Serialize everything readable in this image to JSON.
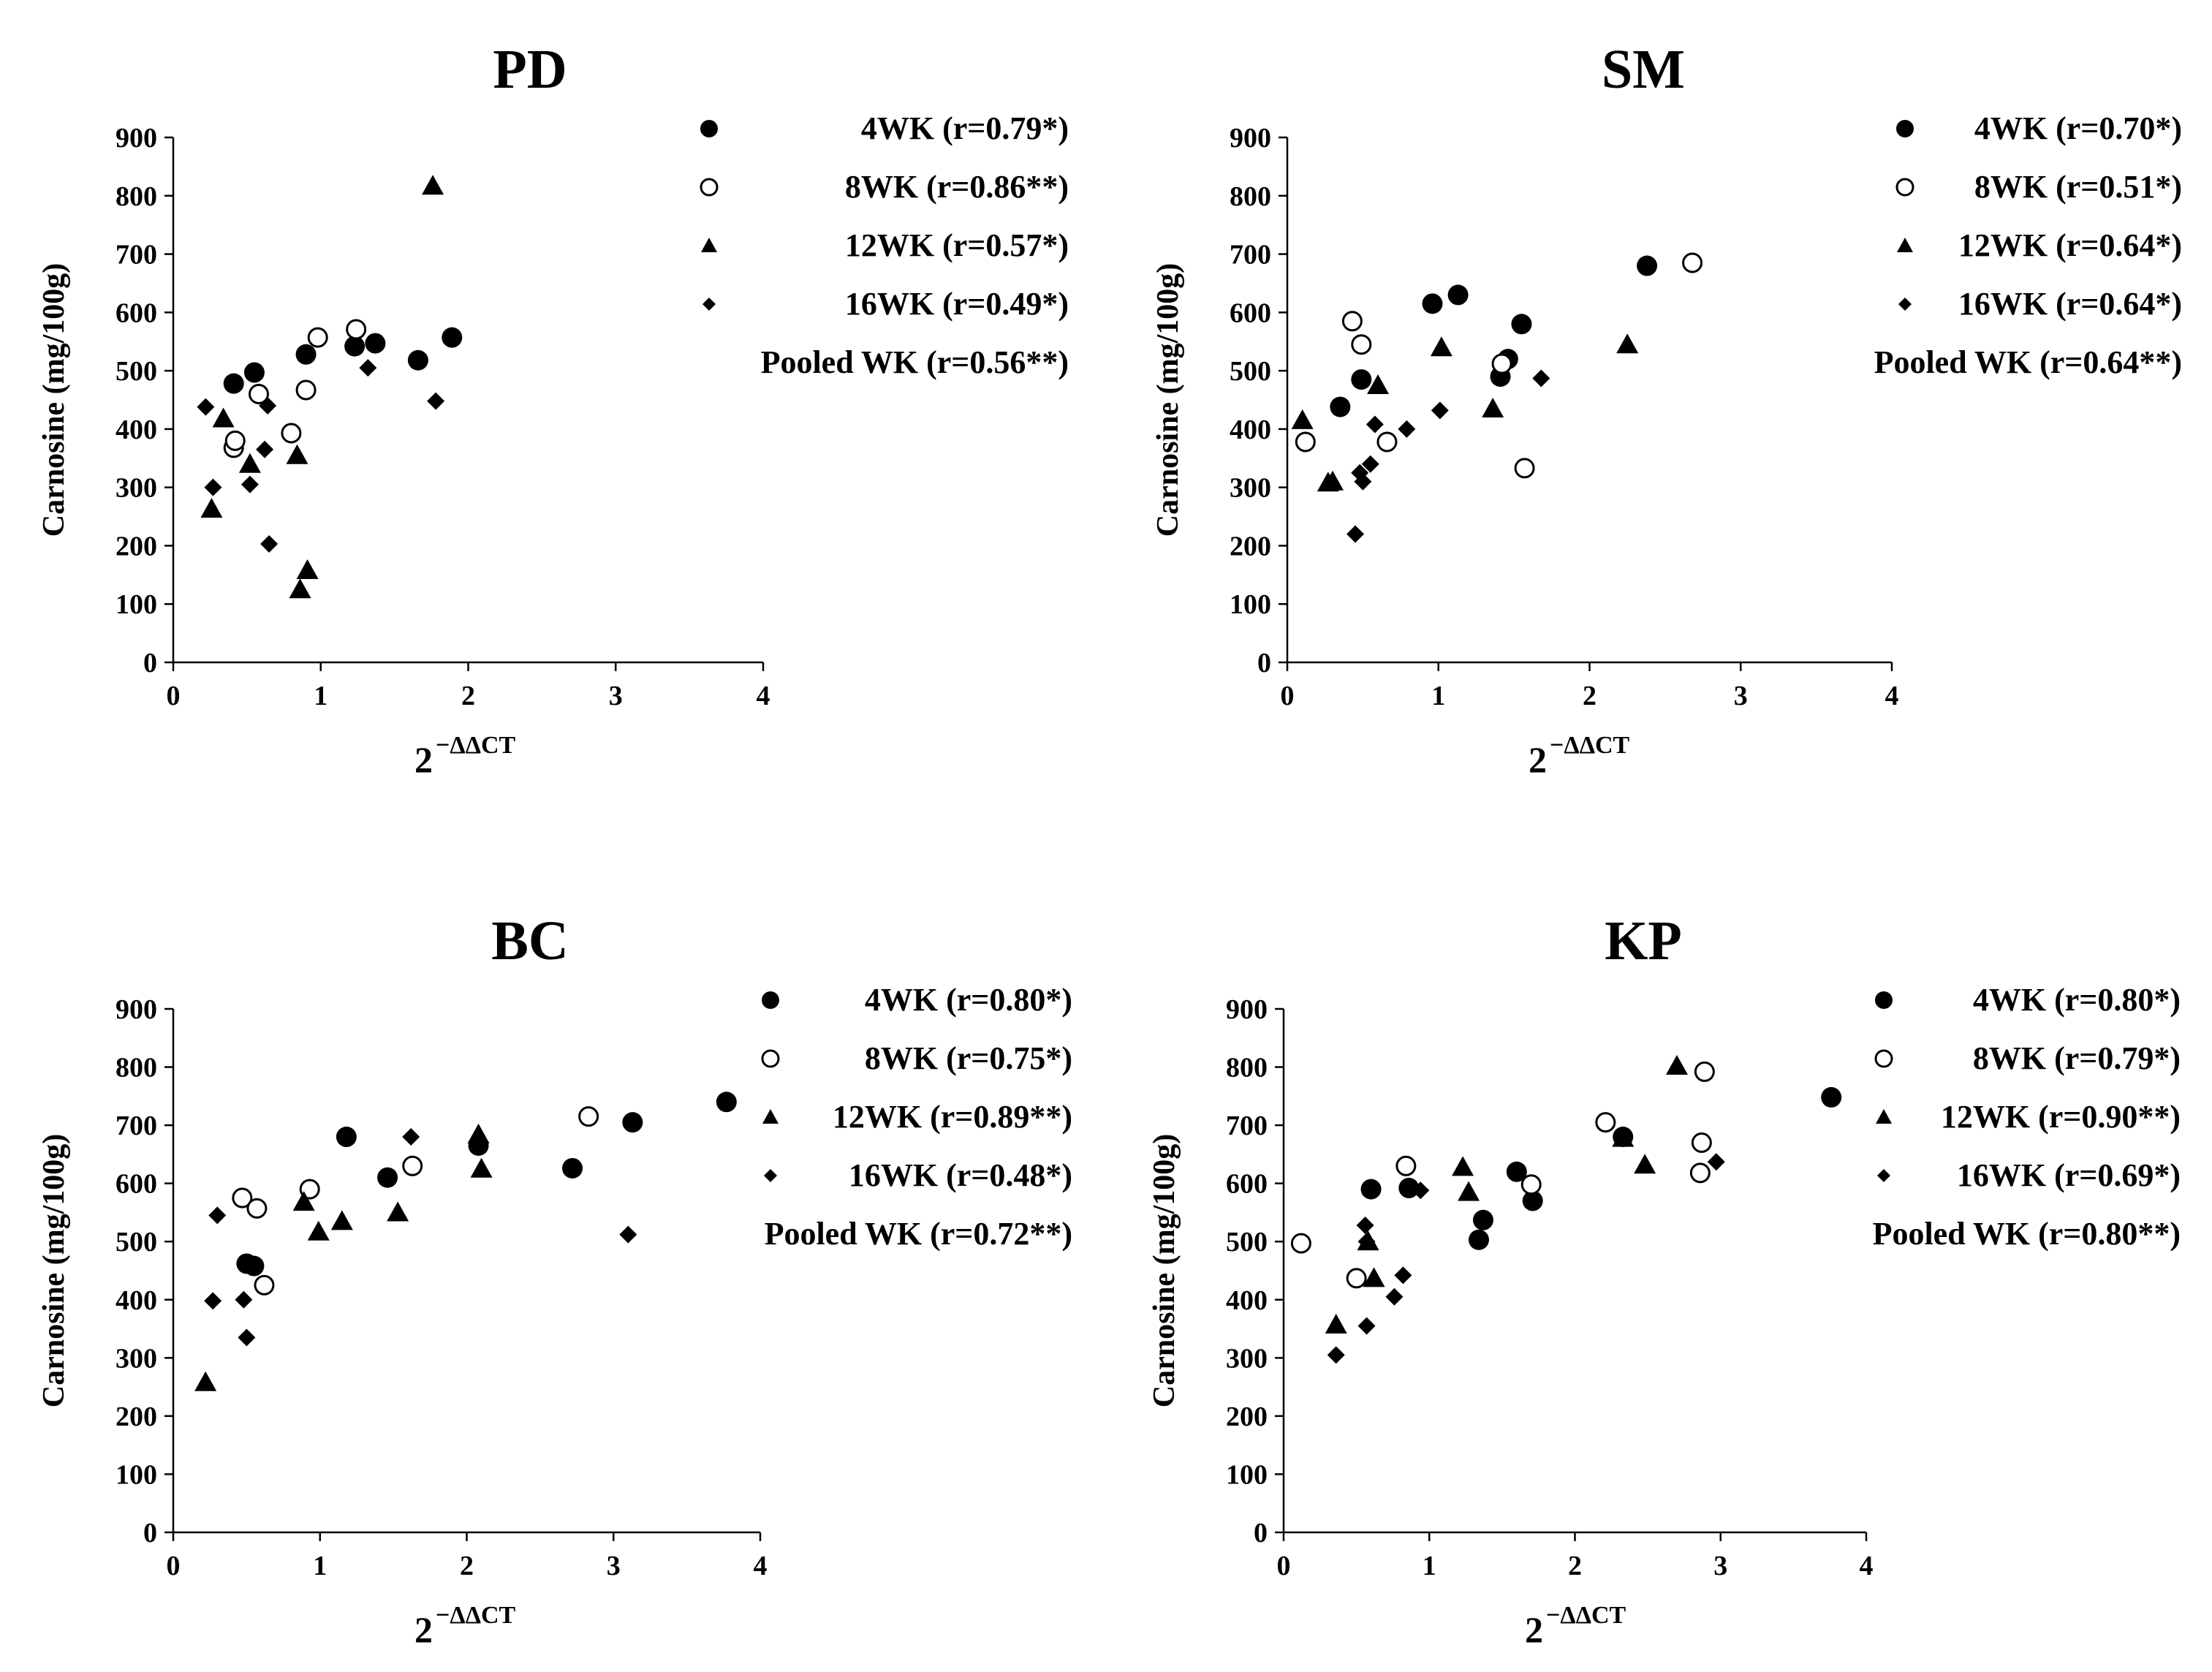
{
  "chart_data": [
    {
      "type": "scatter",
      "title": "PD",
      "xlabel": "2",
      "xlabel_sup": "−ΔΔCT",
      "ylabel": "Carnosine (mg/100g)",
      "xlim": [
        0,
        4
      ],
      "ylim": [
        0,
        900
      ],
      "xticks": [
        "0",
        "1",
        "2",
        "3",
        "4"
      ],
      "yticks": [
        "0",
        "100",
        "200",
        "300",
        "400",
        "500",
        "600",
        "700",
        "800",
        "900"
      ],
      "legend": [
        "4WK (r=0.79*)",
        "8WK (r=0.86**)",
        "12WK (r=0.57*)",
        "16WK (r=0.49*)",
        "Pooled WK (r=0.56**)"
      ],
      "series": [
        {
          "name": "4WK",
          "marker": "filled-circle",
          "points": [
            [
              0.41,
              478
            ],
            [
              0.55,
              497
            ],
            [
              0.9,
              528
            ],
            [
              1.23,
              542
            ],
            [
              1.37,
              547
            ],
            [
              1.66,
              518
            ],
            [
              1.89,
              557
            ]
          ]
        },
        {
          "name": "8WK",
          "marker": "open-circle",
          "points": [
            [
              0.41,
              368
            ],
            [
              0.42,
              380
            ],
            [
              0.58,
              460
            ],
            [
              0.8,
              393
            ],
            [
              0.9,
              467
            ],
            [
              0.98,
              557
            ],
            [
              1.24,
              571
            ]
          ]
        },
        {
          "name": "12WK",
          "marker": "filled-triangle",
          "points": [
            [
              0.26,
              263
            ],
            [
              0.34,
              418
            ],
            [
              0.52,
              340
            ],
            [
              0.84,
              355
            ],
            [
              0.86,
              125
            ],
            [
              0.91,
              158
            ],
            [
              1.76,
              817
            ]
          ]
        },
        {
          "name": "16WK",
          "marker": "filled-diamond",
          "points": [
            [
              0.22,
              438
            ],
            [
              0.27,
              300
            ],
            [
              0.52,
              305
            ],
            [
              0.62,
              365
            ],
            [
              0.64,
              440
            ],
            [
              0.65,
              203
            ],
            [
              1.32,
              505
            ],
            [
              1.78,
              448
            ]
          ]
        }
      ]
    },
    {
      "type": "scatter",
      "title": "SM",
      "xlabel": "2",
      "xlabel_sup": "−ΔΔCT",
      "ylabel": "Carnosine (mg/100g)",
      "xlim": [
        0,
        4
      ],
      "ylim": [
        0,
        900
      ],
      "xticks": [
        "0",
        "1",
        "2",
        "3",
        "4"
      ],
      "yticks": [
        "0",
        "100",
        "200",
        "300",
        "400",
        "500",
        "600",
        "700",
        "800",
        "900"
      ],
      "legend": [
        "4WK (r=0.70*)",
        "8WK (r=0.51*)",
        "12WK (r=0.64*)",
        "16WK (r=0.64*)",
        "Pooled WK (r=0.64**)"
      ],
      "series": [
        {
          "name": "4WK",
          "marker": "filled-circle",
          "points": [
            [
              0.35,
              438
            ],
            [
              0.49,
              485
            ],
            [
              0.96,
              615
            ],
            [
              1.13,
              630
            ],
            [
              1.41,
              490
            ],
            [
              1.46,
              520
            ],
            [
              1.55,
              580
            ],
            [
              2.38,
              680
            ]
          ]
        },
        {
          "name": "8WK",
          "marker": "open-circle",
          "points": [
            [
              0.12,
              378
            ],
            [
              0.43,
              585
            ],
            [
              0.49,
              545
            ],
            [
              0.66,
              378
            ],
            [
              1.42,
              512
            ],
            [
              1.57,
              333
            ],
            [
              2.68,
              685
            ]
          ]
        },
        {
          "name": "12WK",
          "marker": "filled-triangle",
          "points": [
            [
              0.1,
              415
            ],
            [
              0.27,
              308
            ],
            [
              0.3,
              310
            ],
            [
              0.6,
              475
            ],
            [
              1.02,
              540
            ],
            [
              1.36,
              435
            ],
            [
              2.25,
              545
            ]
          ]
        },
        {
          "name": "16WK",
          "marker": "filled-diamond",
          "points": [
            [
              0.45,
              220
            ],
            [
              0.48,
              325
            ],
            [
              0.5,
              310
            ],
            [
              0.55,
              340
            ],
            [
              0.58,
              408
            ],
            [
              0.79,
              400
            ],
            [
              1.01,
              432
            ],
            [
              1.68,
              487
            ]
          ]
        }
      ]
    },
    {
      "type": "scatter",
      "title": "BC",
      "xlabel": "2",
      "xlabel_sup": "−ΔΔCT",
      "ylabel": "Carnosine (mg/100g)",
      "xlim": [
        0,
        4
      ],
      "ylim": [
        0,
        900
      ],
      "xticks": [
        "0",
        "1",
        "2",
        "3",
        "4"
      ],
      "yticks": [
        "0",
        "100",
        "200",
        "300",
        "400",
        "500",
        "600",
        "700",
        "800",
        "900"
      ],
      "legend": [
        "4WK (r=0.80*)",
        "8WK (r=0.75*)",
        "12WK (r=0.89**)",
        "16WK (r=0.48*)",
        "Pooled WK (r=0.72**)"
      ],
      "series": [
        {
          "name": "4WK",
          "marker": "filled-circle",
          "points": [
            [
              0.5,
              462
            ],
            [
              0.55,
              458
            ],
            [
              1.18,
              680
            ],
            [
              1.46,
              610
            ],
            [
              2.08,
              665
            ],
            [
              2.72,
              626
            ],
            [
              3.13,
              705
            ],
            [
              3.77,
              740
            ]
          ]
        },
        {
          "name": "8WK",
          "marker": "open-circle",
          "points": [
            [
              0.47,
              575
            ],
            [
              0.57,
              557
            ],
            [
              0.62,
              425
            ],
            [
              0.93,
              590
            ],
            [
              1.63,
              630
            ],
            [
              2.83,
              715
            ]
          ]
        },
        {
          "name": "12WK",
          "marker": "filled-triangle",
          "points": [
            [
              0.22,
              258
            ],
            [
              0.89,
              568
            ],
            [
              0.99,
              517
            ],
            [
              1.15,
              535
            ],
            [
              1.53,
              550
            ],
            [
              2.08,
              684
            ],
            [
              2.1,
              625
            ]
          ]
        },
        {
          "name": "16WK",
          "marker": "filled-diamond",
          "points": [
            [
              0.27,
              398
            ],
            [
              0.3,
              545
            ],
            [
              0.48,
              400
            ],
            [
              0.5,
              335
            ],
            [
              1.62,
              680
            ],
            [
              3.1,
              512
            ]
          ]
        }
      ]
    },
    {
      "type": "scatter",
      "title": "KP",
      "xlabel": "2",
      "xlabel_sup": "−ΔΔCT",
      "ylabel": "Carnosine (mg/100g)",
      "xlim": [
        0,
        4
      ],
      "ylim": [
        0,
        900
      ],
      "xticks": [
        "0",
        "1",
        "2",
        "3",
        "4"
      ],
      "yticks": [
        "0",
        "100",
        "200",
        "300",
        "400",
        "500",
        "600",
        "700",
        "800",
        "900"
      ],
      "legend": [
        "4WK (r=0.80*)",
        "8WK (r=0.79*)",
        "12WK (r=0.90**)",
        "16WK (r=0.69*)",
        "Pooled WK (r=0.80**)"
      ],
      "series": [
        {
          "name": "4WK",
          "marker": "filled-circle",
          "points": [
            [
              0.6,
              590
            ],
            [
              0.86,
              592
            ],
            [
              1.34,
              503
            ],
            [
              1.37,
              537
            ],
            [
              1.6,
              620
            ],
            [
              1.71,
              570
            ],
            [
              2.33,
              680
            ],
            [
              3.76,
              748
            ]
          ]
        },
        {
          "name": "8WK",
          "marker": "open-circle",
          "points": [
            [
              0.12,
              497
            ],
            [
              0.5,
              437
            ],
            [
              0.84,
              630
            ],
            [
              1.7,
              598
            ],
            [
              2.21,
              705
            ],
            [
              2.86,
              618
            ],
            [
              2.87,
              670
            ],
            [
              2.89,
              792
            ]
          ]
        },
        {
          "name": "12WK",
          "marker": "filled-triangle",
          "points": [
            [
              0.36,
              357
            ],
            [
              0.58,
              500
            ],
            [
              0.62,
              437
            ],
            [
              1.23,
              628
            ],
            [
              1.27,
              585
            ],
            [
              2.33,
              678
            ],
            [
              2.48,
              632
            ],
            [
              2.7,
              802
            ]
          ]
        },
        {
          "name": "16WK",
          "marker": "filled-diamond",
          "points": [
            [
              0.36,
              305
            ],
            [
              0.56,
              528
            ],
            [
              0.57,
              500
            ],
            [
              0.57,
              355
            ],
            [
              0.76,
              405
            ],
            [
              0.82,
              442
            ],
            [
              0.94,
              588
            ],
            [
              2.97,
              637
            ]
          ]
        }
      ]
    }
  ]
}
